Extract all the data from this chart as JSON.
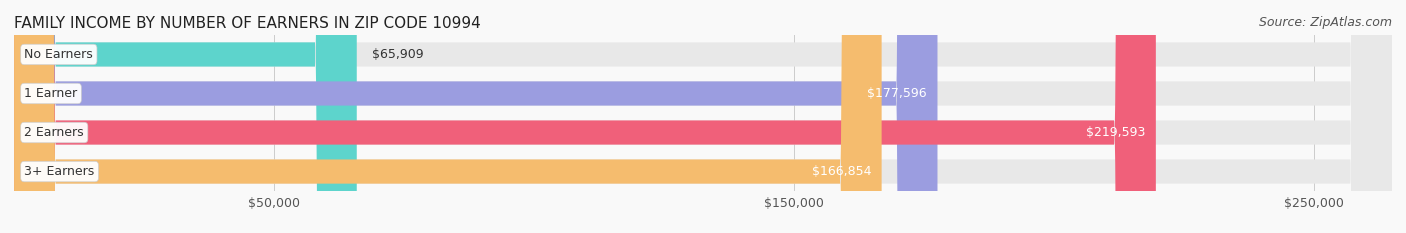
{
  "title": "FAMILY INCOME BY NUMBER OF EARNERS IN ZIP CODE 10994",
  "source": "Source: ZipAtlas.com",
  "categories": [
    "No Earners",
    "1 Earner",
    "2 Earners",
    "3+ Earners"
  ],
  "values": [
    65909,
    177596,
    219593,
    166854
  ],
  "bar_colors": [
    "#5dd4cc",
    "#9b9de0",
    "#f0607a",
    "#f5bc6e"
  ],
  "bar_bg_color": "#eeeeee",
  "value_labels": [
    "$65,909",
    "$177,596",
    "$219,593",
    "$166,854"
  ],
  "x_ticks": [
    50000,
    150000,
    250000
  ],
  "x_tick_labels": [
    "$50,000",
    "$150,000",
    "$250,000"
  ],
  "xmin": 0,
  "xmax": 265000,
  "label_bg_color": "#ffffff",
  "title_fontsize": 11,
  "source_fontsize": 9,
  "label_fontsize": 9,
  "value_fontsize": 9,
  "tick_fontsize": 9,
  "background_color": "#f9f9f9"
}
